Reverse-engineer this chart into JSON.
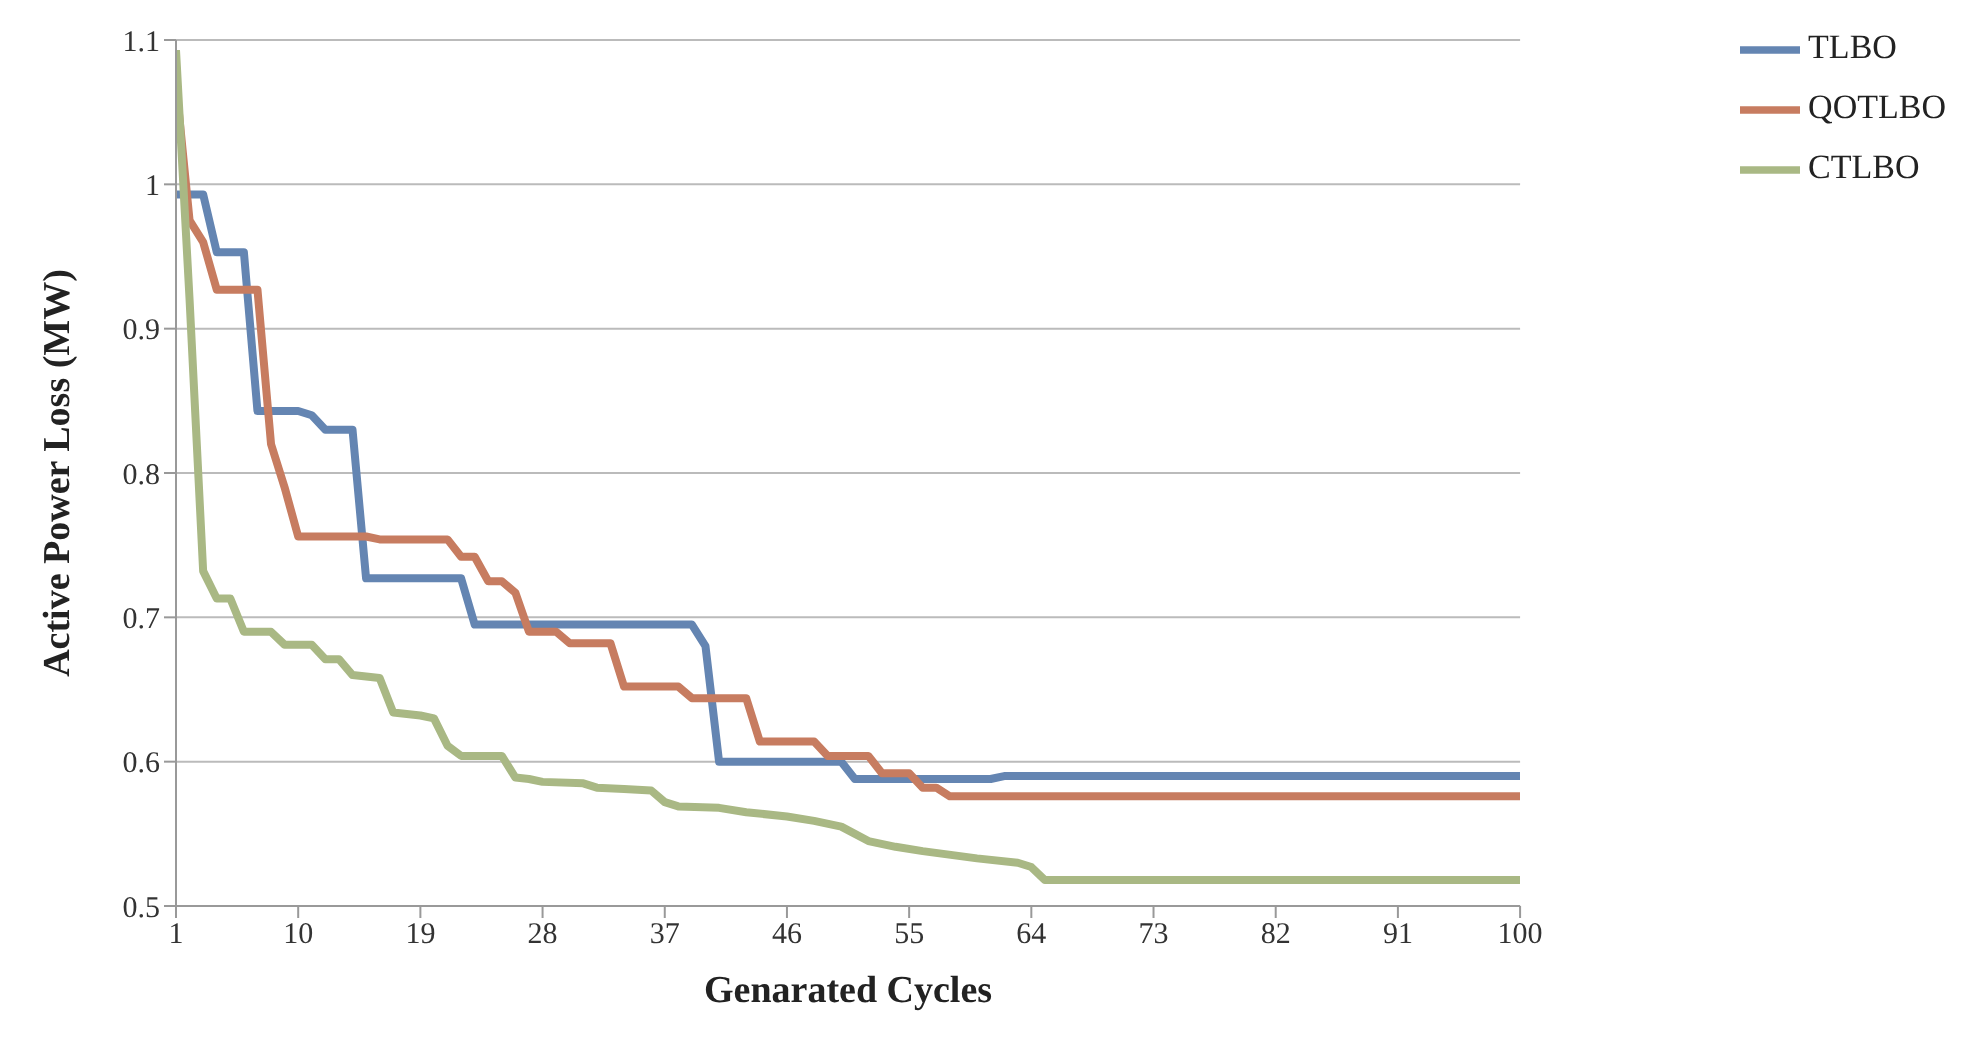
{
  "chart_data": {
    "type": "line",
    "xlabel": "Genarated Cycles",
    "ylabel": "Active Power Loss  (MW)",
    "xlim": [
      1,
      100
    ],
    "xticks": [
      1,
      10,
      19,
      28,
      37,
      46,
      55,
      64,
      73,
      82,
      91,
      100
    ],
    "ylim": [
      0.5,
      1.1
    ],
    "yticks": [
      0.5,
      0.6,
      0.7,
      0.8,
      0.9,
      1,
      1.1
    ],
    "grid": "y",
    "legend": "top right",
    "marker": "none",
    "line_style": "solid",
    "series": [
      {
        "name": "TLBO",
        "color": "#6485b2",
        "x": [
          1,
          3,
          4,
          6,
          7,
          10,
          11,
          12,
          14,
          15,
          22,
          23,
          39,
          40,
          41,
          50,
          51,
          61,
          62,
          100
        ],
        "values": [
          0.993,
          0.993,
          0.953,
          0.953,
          0.843,
          0.843,
          0.84,
          0.83,
          0.83,
          0.727,
          0.727,
          0.695,
          0.695,
          0.68,
          0.6,
          0.6,
          0.588,
          0.588,
          0.59,
          0.59
        ]
      },
      {
        "name": "QOTLBO",
        "color": "#c77c60",
        "x": [
          1,
          2,
          3,
          4,
          7,
          8,
          9,
          10,
          15,
          16,
          21,
          22,
          23,
          24,
          25,
          26,
          27,
          29,
          30,
          33,
          34,
          38,
          39,
          43,
          44,
          48,
          49,
          52,
          53,
          55,
          56,
          57,
          58,
          100
        ],
        "values": [
          1.07,
          0.975,
          0.96,
          0.927,
          0.927,
          0.82,
          0.79,
          0.756,
          0.756,
          0.754,
          0.754,
          0.742,
          0.742,
          0.725,
          0.725,
          0.717,
          0.69,
          0.69,
          0.682,
          0.682,
          0.652,
          0.652,
          0.644,
          0.644,
          0.614,
          0.614,
          0.604,
          0.604,
          0.592,
          0.592,
          0.582,
          0.582,
          0.576,
          0.576
        ]
      },
      {
        "name": "CTLBO",
        "color": "#a9b884",
        "x": [
          1,
          2,
          3,
          4,
          5,
          6,
          8,
          9,
          11,
          12,
          13,
          14,
          16,
          17,
          19,
          20,
          21,
          22,
          25,
          26,
          27,
          28,
          31,
          32,
          34,
          36,
          37,
          38,
          41,
          43,
          46,
          48,
          50,
          52,
          54,
          56,
          60,
          63,
          64,
          65,
          100
        ],
        "values": [
          1.093,
          0.92,
          0.732,
          0.713,
          0.713,
          0.69,
          0.69,
          0.681,
          0.681,
          0.671,
          0.671,
          0.66,
          0.658,
          0.634,
          0.632,
          0.63,
          0.611,
          0.604,
          0.604,
          0.589,
          0.588,
          0.586,
          0.585,
          0.582,
          0.581,
          0.58,
          0.572,
          0.569,
          0.568,
          0.565,
          0.562,
          0.559,
          0.555,
          0.545,
          0.541,
          0.538,
          0.533,
          0.53,
          0.527,
          0.518,
          0.518
        ]
      }
    ]
  }
}
